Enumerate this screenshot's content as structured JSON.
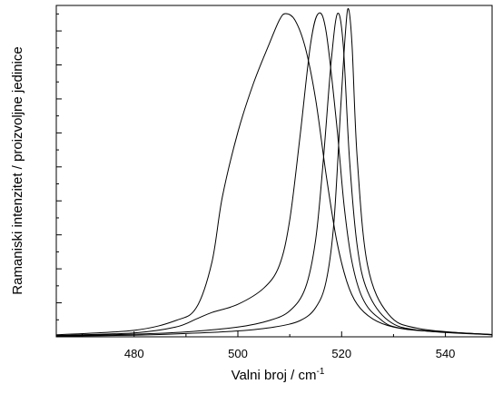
{
  "chart_data": {
    "type": "line",
    "xlabel": "Valni broj / cm",
    "xlabel_superscript": "-1",
    "ylabel": "Ramaniski intenzitet / proizvoljne jedinice",
    "xlim": [
      465,
      549
    ],
    "ylim": [
      0,
      1.02
    ],
    "x_ticks": [
      480,
      500,
      520,
      540
    ],
    "y_tick_labels": "none",
    "grid": false,
    "legend": "none",
    "line_color": "#000000",
    "series": [
      {
        "x": [
          465,
          480,
          488,
          492,
          495,
          497,
          500,
          503,
          506,
          508,
          509.2,
          511,
          513,
          515,
          517,
          519,
          521,
          523,
          526,
          530,
          536,
          549
        ],
        "values": [
          0.006,
          0.02,
          0.05,
          0.09,
          0.23,
          0.43,
          0.63,
          0.78,
          0.9,
          0.975,
          0.995,
          0.975,
          0.89,
          0.73,
          0.5,
          0.3,
          0.17,
          0.1,
          0.055,
          0.03,
          0.018,
          0.007
        ]
      },
      {
        "x": [
          465,
          480,
          488,
          492,
          495,
          500,
          505,
          508,
          510,
          512,
          514,
          515.5,
          517,
          519,
          520.5,
          522,
          524,
          527,
          532,
          549
        ],
        "values": [
          0.004,
          0.012,
          0.03,
          0.055,
          0.075,
          0.1,
          0.15,
          0.22,
          0.36,
          0.62,
          0.9,
          0.995,
          0.94,
          0.66,
          0.4,
          0.23,
          0.12,
          0.06,
          0.025,
          0.007
        ]
      },
      {
        "x": [
          465,
          480,
          490,
          500,
          506,
          510,
          513,
          515,
          516.5,
          518,
          519.2,
          520.3,
          521.5,
          523,
          525,
          529,
          535,
          549
        ],
        "values": [
          0.003,
          0.008,
          0.015,
          0.03,
          0.05,
          0.08,
          0.15,
          0.3,
          0.55,
          0.85,
          0.995,
          0.9,
          0.55,
          0.28,
          0.14,
          0.05,
          0.02,
          0.006
        ]
      },
      {
        "x": [
          465,
          480,
          490,
          500,
          507,
          512,
          515,
          517,
          518.5,
          519.8,
          520.7,
          521.3,
          522,
          523,
          525,
          529,
          535,
          549
        ],
        "values": [
          0.002,
          0.005,
          0.01,
          0.018,
          0.03,
          0.05,
          0.09,
          0.17,
          0.35,
          0.7,
          0.93,
          1.01,
          0.9,
          0.55,
          0.22,
          0.07,
          0.025,
          0.006
        ]
      }
    ]
  }
}
